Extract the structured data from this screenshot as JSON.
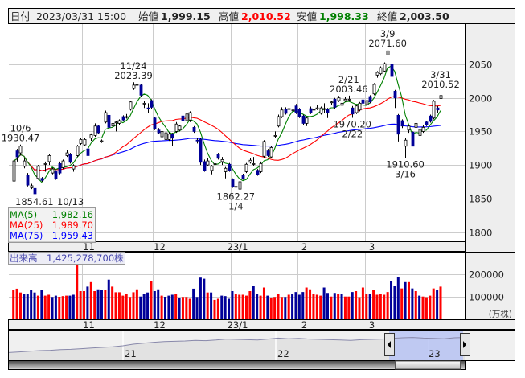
{
  "header": {
    "date_label": "日付",
    "date_value": "2023/03/31 15:00",
    "open_label": "始値",
    "open_value": "1,999.15",
    "high_label": "高値",
    "high_value": "2,010.52",
    "low_label": "安値",
    "low_value": "1,998.33",
    "close_label": "終値",
    "close_value": "2,003.50"
  },
  "colors": {
    "up_candle": "#ffffff",
    "down_candle": "#000099",
    "ma5": "#008000",
    "ma25": "#ff0000",
    "ma75": "#0000ff",
    "volume_up": "#ff0000",
    "volume_down": "#000099",
    "high_value": "#ff0000",
    "low_value": "#008000",
    "navigator_selection": "#b8c4f4"
  },
  "ma_legend": [
    {
      "label": "MA(5)",
      "value": "1,982.16",
      "period": 5,
      "color": "#008000"
    },
    {
      "label": "MA(25)",
      "value": "1,989.70",
      "period": 25,
      "color": "#ff0000"
    },
    {
      "label": "MA(75)",
      "value": "1,959.43",
      "period": 75,
      "color": "#0000ff"
    }
  ],
  "volume_legend": {
    "label": "出来高",
    "value": "1,425,278,700株"
  },
  "volume_unit": "(万株)",
  "chart_data": {
    "type": "candlestick",
    "price_axis": {
      "ticks": [
        1800,
        1850,
        1900,
        1950,
        2000,
        2050
      ],
      "range": [
        1790,
        2090
      ]
    },
    "volume_axis": {
      "ticks": [
        100000,
        200000
      ],
      "unit": "万株",
      "range": [
        0,
        280000
      ]
    },
    "month_ticks": [
      {
        "label": "11",
        "start_index": 20
      },
      {
        "label": "12",
        "start_index": 40
      },
      {
        "label": "23/1",
        "start_index": 62
      },
      {
        "label": "2",
        "start_index": 81
      },
      {
        "label": "3",
        "start_index": 100
      }
    ],
    "ohlc": [
      [
        1876,
        1908,
        1874,
        1906
      ],
      [
        1921,
        1924,
        1905,
        1912
      ],
      [
        1918,
        1930.47,
        1914,
        1928
      ],
      [
        1898,
        1910,
        1895,
        1906
      ],
      [
        1885,
        1888,
        1868,
        1870
      ],
      [
        1866,
        1872,
        1864,
        1869
      ],
      [
        1865,
        1866,
        1854.61,
        1857
      ],
      [
        1880,
        1900,
        1878,
        1898
      ],
      [
        1880,
        1882,
        1875,
        1877
      ],
      [
        1901,
        1905,
        1890,
        1902
      ],
      [
        1905,
        1916,
        1900,
        1914
      ],
      [
        1888,
        1896,
        1886,
        1894
      ],
      [
        1890,
        1892,
        1878,
        1880
      ],
      [
        1902,
        1905,
        1886,
        1888
      ],
      [
        1896,
        1908,
        1894,
        1906
      ],
      [
        1914,
        1922,
        1912,
        1918
      ],
      [
        1916,
        1918,
        1902,
        1904
      ],
      [
        1894,
        1901,
        1890,
        1899
      ],
      [
        1914,
        1930,
        1912,
        1928
      ],
      [
        1932,
        1940,
        1930,
        1938
      ],
      [
        1930,
        1940,
        1928,
        1938
      ],
      [
        1924,
        1926,
        1912,
        1914
      ],
      [
        1940,
        1947,
        1936,
        1945
      ],
      [
        1944,
        1962,
        1942,
        1958
      ],
      [
        1958,
        1960,
        1946,
        1948
      ],
      [
        1935,
        1938,
        1933,
        1936
      ],
      [
        1964,
        1981,
        1962,
        1978
      ],
      [
        1974,
        1976,
        1954,
        1956
      ],
      [
        1958,
        1965,
        1955,
        1962
      ],
      [
        1963,
        1966,
        1950,
        1964
      ],
      [
        1962,
        1968,
        1960,
        1966
      ],
      [
        1972,
        1974,
        1965,
        1967
      ],
      [
        1971,
        1976,
        1969,
        1972
      ],
      [
        1983,
        1996,
        1981,
        1994
      ],
      [
        2014,
        2023.39,
        2012,
        2019
      ],
      [
        2019,
        2022,
        2010,
        2020
      ],
      [
        2019,
        2020,
        2002,
        2004
      ],
      [
        1991,
        1996,
        1985,
        1992
      ],
      [
        1985,
        1992,
        1978,
        1984
      ],
      [
        1996,
        1998,
        1984,
        1986
      ],
      [
        1970,
        1972,
        1952,
        1954
      ],
      [
        1952,
        1955,
        1946,
        1948
      ],
      [
        1942,
        1952,
        1940,
        1950
      ],
      [
        1938,
        1950,
        1936,
        1948
      ],
      [
        1938,
        1949,
        1936,
        1946
      ],
      [
        1946,
        1948,
        1928,
        1940
      ],
      [
        1950,
        1964,
        1948,
        1961
      ],
      [
        1952,
        1960,
        1950,
        1958
      ],
      [
        1973,
        1975,
        1964,
        1966
      ],
      [
        1966,
        1978,
        1964,
        1976
      ],
      [
        1967,
        1980,
        1964,
        1978
      ],
      [
        1956,
        1958,
        1948,
        1950
      ],
      [
        1937,
        1940,
        1932,
        1936
      ],
      [
        1938,
        1940,
        1900,
        1904
      ],
      [
        1905,
        1908,
        1890,
        1892
      ],
      [
        1900,
        1910,
        1898,
        1906
      ],
      [
        1892,
        1900,
        1886,
        1898
      ],
      [
        1901,
        1905,
        1898,
        1902
      ],
      [
        1916,
        1918,
        1908,
        1910
      ],
      [
        1905,
        1912,
        1900,
        1908
      ],
      [
        1890,
        1897,
        1880,
        1895
      ],
      [
        1901,
        1903,
        1890,
        1892
      ],
      [
        1878,
        1880,
        1866,
        1868
      ],
      [
        1867,
        1872,
        1862.27,
        1868
      ],
      [
        1864,
        1877,
        1862,
        1875
      ],
      [
        1885,
        1887,
        1878,
        1880
      ],
      [
        1890,
        1903,
        1888,
        1901
      ],
      [
        1904,
        1910,
        1902,
        1907
      ],
      [
        1901,
        1912,
        1898,
        1902
      ],
      [
        1892,
        1894,
        1884,
        1886
      ],
      [
        1890,
        1905,
        1888,
        1902
      ],
      [
        1913,
        1937,
        1910,
        1935
      ],
      [
        1921,
        1924,
        1912,
        1914
      ],
      [
        1912,
        1928,
        1910,
        1926
      ],
      [
        1943,
        1950,
        1940,
        1944
      ],
      [
        1958,
        1975,
        1956,
        1972
      ],
      [
        1972,
        1986,
        1970,
        1982
      ],
      [
        1983,
        1986,
        1975,
        1977
      ],
      [
        1983,
        1987,
        1980,
        1984
      ],
      [
        1981,
        1985,
        1979,
        1982
      ],
      [
        1988,
        1991,
        1976,
        1978
      ],
      [
        1983,
        1985,
        1970,
        1972
      ],
      [
        1973,
        1975,
        1960,
        1962
      ],
      [
        1962,
        1972,
        1958,
        1970
      ],
      [
        1984,
        1987,
        1976,
        1978
      ],
      [
        1982,
        1988,
        1980,
        1983
      ],
      [
        1984,
        1989,
        1982,
        1985
      ],
      [
        1977,
        1987,
        1975,
        1985
      ],
      [
        1983,
        1992,
        1978,
        1984
      ],
      [
        1983,
        1985,
        1970,
        1978
      ],
      [
        1993,
        1996,
        1990,
        1994
      ],
      [
        1998,
        2000,
        1984,
        1986
      ],
      [
        1996,
        2003,
        1994,
        2000
      ],
      [
        1989,
        1995,
        1987,
        1992
      ],
      [
        1996,
        2001,
        1994,
        1998
      ],
      [
        1997,
        2003.46,
        1995,
        1998
      ],
      [
        1985,
        1988,
        1970.2,
        1976
      ],
      [
        1978,
        1990,
        1976,
        1988
      ],
      [
        1982,
        1994,
        1980,
        1992
      ],
      [
        1997,
        2000,
        1990,
        1992
      ],
      [
        1990,
        1998,
        1988,
        1996
      ],
      [
        2002,
        2004,
        1992,
        1994
      ],
      [
        2006,
        2022,
        2004,
        2020
      ],
      [
        2034,
        2040,
        2030,
        2038
      ],
      [
        2036,
        2047,
        2034,
        2045
      ],
      [
        2040,
        2053,
        2038,
        2051
      ],
      [
        2064,
        2071.6,
        2062,
        2070
      ],
      [
        2050,
        2054,
        2030,
        2032
      ],
      [
        2010,
        2012,
        1985,
        2000
      ],
      [
        1974,
        1976,
        1935,
        1946
      ],
      [
        1966,
        1968,
        1955,
        1958
      ],
      [
        1928,
        1940,
        1910.6,
        1937
      ],
      [
        1952,
        1960,
        1948,
        1958
      ],
      [
        1949,
        1950,
        1928,
        1928
      ],
      [
        1956,
        1967,
        1952,
        1962
      ],
      [
        1944,
        1958,
        1940,
        1953
      ],
      [
        1950,
        1960,
        1948,
        1956
      ],
      [
        1964,
        1966,
        1958,
        1960
      ],
      [
        1973,
        1975,
        1963,
        1965
      ],
      [
        1970,
        1997,
        1968,
        1995
      ],
      [
        1985,
        1988,
        1978,
        1982
      ],
      [
        1999.15,
        2010.52,
        1998.33,
        2003.5
      ]
    ],
    "volume": [
      129000,
      136000,
      119000,
      113000,
      113000,
      129000,
      119000,
      105000,
      132000,
      105000,
      109000,
      99000,
      105000,
      100000,
      103000,
      105000,
      105000,
      109000,
      247000,
      125000,
      125000,
      145000,
      165000,
      125000,
      133000,
      129000,
      129000,
      176000,
      145000,
      120000,
      120000,
      105000,
      113000,
      99000,
      120000,
      133000,
      101000,
      113000,
      119000,
      169000,
      125000,
      133000,
      105000,
      100000,
      105000,
      109000,
      113000,
      94000,
      99000,
      99000,
      91000,
      136000,
      99000,
      185000,
      180000,
      119000,
      119000,
      86000,
      91000,
      105000,
      103000,
      91000,
      125000,
      113000,
      109000,
      109000,
      105000,
      125000,
      149000,
      113000,
      105000,
      141000,
      105000,
      94000,
      99000,
      113000,
      99000,
      99000,
      109000,
      113000,
      121000,
      109000,
      121000,
      141000,
      133000,
      113000,
      109000,
      105000,
      141000,
      117000,
      101000,
      117000,
      113000,
      113000,
      101000,
      101000,
      121000,
      125000,
      98000,
      141000,
      113000,
      113000,
      129000,
      109000,
      113000,
      109000,
      121000,
      169000,
      149000,
      187000,
      137000,
      165000,
      165000,
      137000,
      125000,
      105000,
      101000,
      98000,
      105000,
      137000,
      129000,
      145000
    ],
    "annotations": [
      {
        "date": "10/6",
        "value": "1930.47",
        "index": 2,
        "position": "above"
      },
      {
        "date": "10/13",
        "value": "1854.61",
        "index": 6,
        "position": "below"
      },
      {
        "date": "11/24",
        "value": "2023.39",
        "index": 34,
        "position": "above"
      },
      {
        "date": "1/4",
        "value": "1862.27",
        "index": 63,
        "position": "below"
      },
      {
        "date": "2/21",
        "value": "2003.46",
        "index": 95,
        "position": "above"
      },
      {
        "date": "2/22",
        "value": "1970.20",
        "index": 96,
        "position": "below"
      },
      {
        "date": "3/9",
        "value": "2071.60",
        "index": 106,
        "position": "above"
      },
      {
        "date": "3/16",
        "value": "1910.60",
        "index": 111,
        "position": "below"
      },
      {
        "date": "3/31",
        "value": "2010.52",
        "index": 121,
        "position": "above"
      }
    ]
  },
  "navigator": {
    "year_labels": [
      "21",
      "22",
      "23"
    ],
    "series": [
      1540,
      1560,
      1580,
      1600,
      1610,
      1630,
      1640,
      1660,
      1680,
      1700,
      1720,
      1750,
      1800,
      1830,
      1860,
      1880,
      1890,
      1900,
      1920,
      1910,
      1930,
      1960,
      1950,
      1940,
      1930,
      1960,
      1990,
      1970,
      1980,
      1960,
      1950,
      1940,
      1930,
      1920,
      1940,
      1950,
      1960,
      1980,
      2000,
      2010,
      1990,
      1980,
      1970,
      2000,
      2010
    ]
  }
}
